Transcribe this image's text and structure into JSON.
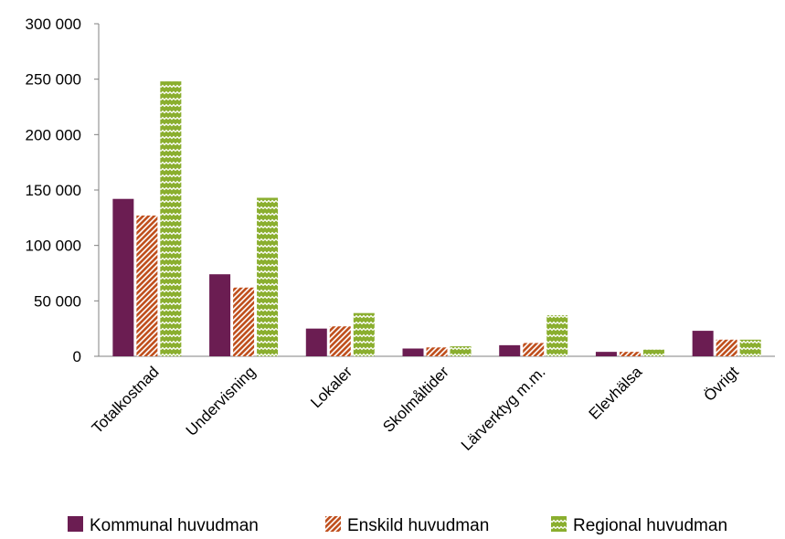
{
  "chart_data": {
    "type": "bar",
    "categories": [
      "Totalkostnad",
      "Undervisning",
      "Lokaler",
      "Skolmåltider",
      "Lärverktyg m.m.",
      "Elevhälsa",
      "Övrigt"
    ],
    "series": [
      {
        "name": "Kommunal huvudman",
        "color": "#6B1D52",
        "pattern": "solid",
        "values": [
          142000,
          74000,
          25000,
          7000,
          10000,
          4000,
          23000
        ]
      },
      {
        "name": "Enskild huvudman",
        "color": "#C0501E",
        "pattern": "diagonal-hatch",
        "values": [
          127000,
          62000,
          27000,
          8000,
          12000,
          4000,
          15000
        ]
      },
      {
        "name": "Regional huvudman",
        "color": "#8AAE2E",
        "pattern": "zigzag",
        "values": [
          248000,
          143000,
          39000,
          9000,
          37000,
          6000,
          15000
        ]
      }
    ],
    "yticks": [
      "0",
      "50 000",
      "100 000",
      "150 000",
      "200 000",
      "250 000",
      "300 000"
    ],
    "ylim": [
      0,
      300000
    ],
    "grid": false,
    "legend_position": "bottom"
  }
}
